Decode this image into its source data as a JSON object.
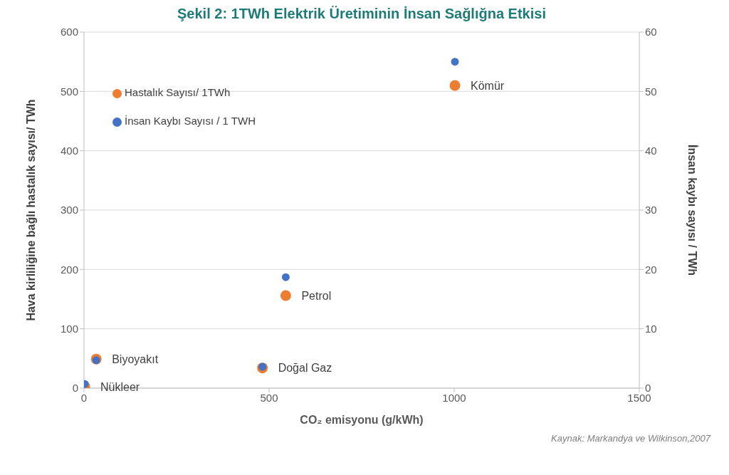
{
  "chart_data": {
    "type": "scatter",
    "title": "Şekil 2:  1TWh Elektrik Üretiminin İnsan Sağlığna Etkisi",
    "xlabel": "CO₂ emisyonu (g/kWh)",
    "ylabel": "Hava kirliliğine bağlı hastalık sayısı/ TWh",
    "y2label": "İnsan kaybı sayısı / TWh",
    "x": [
      2,
      33,
      482,
      545,
      1002
    ],
    "series": [
      {
        "name": "Hastalık Sayısı/ 1TWh",
        "color": "#ed7d31",
        "values": [
          3,
          49,
          34,
          156,
          510
        ]
      },
      {
        "name": "İnsan Kaybı Sayısı / 1 TWH",
        "color": "#4472c4",
        "values": [
          0.7,
          4.7,
          3.6,
          18.7,
          55
        ],
        "axis": "y2"
      }
    ],
    "xlim": [
      0,
      1500
    ],
    "xticks": [
      0,
      500,
      1000,
      1500
    ],
    "ylim": [
      0,
      600
    ],
    "yticks": [
      0,
      100,
      200,
      300,
      400,
      500,
      600
    ],
    "y2lim": [
      0,
      60
    ],
    "y2ticks": [
      0,
      10,
      20,
      30,
      40,
      50,
      60
    ],
    "grid": "y",
    "legend": "top left",
    "marker": "circle",
    "annotations": [
      {
        "text": "Nükleer",
        "x": 2,
        "y": 2.5
      },
      {
        "text": "Biyoyakıt",
        "x": 33,
        "y": 49
      },
      {
        "text": "Doğal Gaz",
        "x": 482,
        "y": 34
      },
      {
        "text": "Petrol",
        "x": 545,
        "y": 156
      },
      {
        "text": "Kömür",
        "x": 1002,
        "y": 510
      },
      "Kaynak: Markandya ve Wilkinson,2007"
    ]
  }
}
